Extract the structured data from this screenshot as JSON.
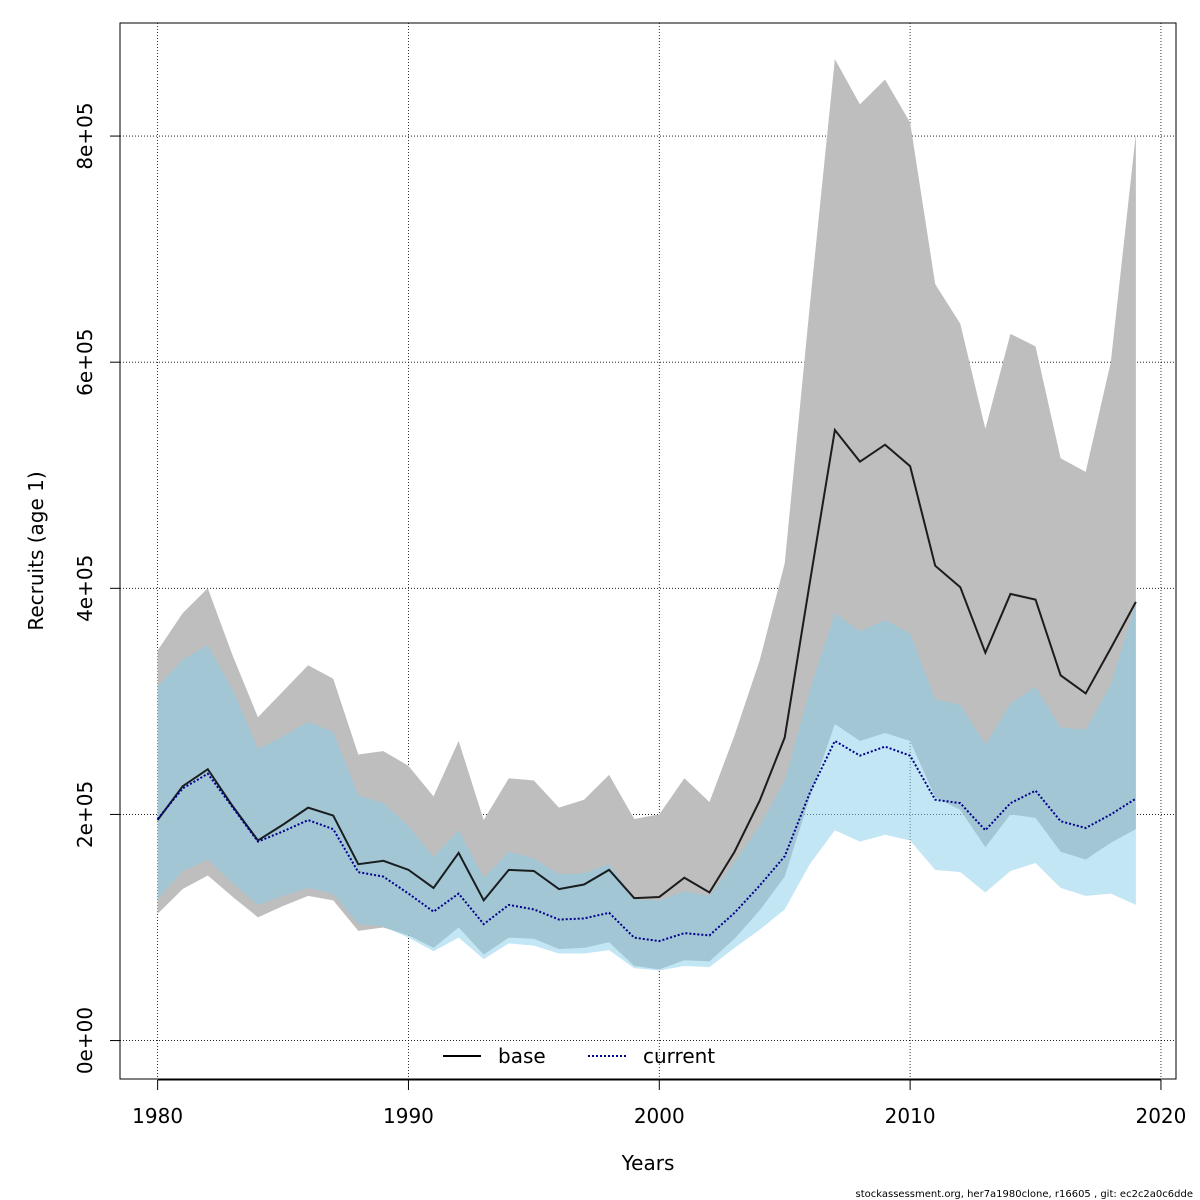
{
  "chart_data": {
    "type": "area",
    "title": "",
    "xlabel": "Years",
    "ylabel": "Recruits (age 1)",
    "xlim": [
      1978.5,
      2020.6
    ],
    "ylim": [
      -34000,
      900000
    ],
    "x_ticks": [
      1980,
      1990,
      2000,
      2010,
      2020
    ],
    "x_tick_labels": [
      "1980",
      "1990",
      "2000",
      "2010",
      "2020"
    ],
    "y_ticks": [
      0,
      200000,
      400000,
      600000,
      800000
    ],
    "y_tick_labels": [
      "0e+00",
      "2e+05",
      "4e+05",
      "6e+05",
      "8e+05"
    ],
    "grid": true,
    "legend_position": "bottom",
    "x": [
      1980,
      1981,
      1982,
      1983,
      1984,
      1985,
      1986,
      1987,
      1988,
      1989,
      1990,
      1991,
      1992,
      1993,
      1994,
      1995,
      1996,
      1997,
      1998,
      1999,
      2000,
      2001,
      2002,
      2003,
      2004,
      2005,
      2006,
      2007,
      2008,
      2009,
      2010,
      2011,
      2012,
      2013,
      2014,
      2015,
      2016,
      2017,
      2018,
      2019
    ],
    "series": [
      {
        "name": "base",
        "color": "#000000",
        "line_style": "solid",
        "band_color": "#bebebe",
        "values": [
          195000,
          225000,
          240000,
          207000,
          177000,
          191000,
          206000,
          199000,
          156000,
          159000,
          151000,
          135000,
          166000,
          124000,
          151000,
          150000,
          134000,
          138000,
          151000,
          126000,
          127000,
          144000,
          131000,
          167000,
          212000,
          268000,
          405000,
          540000,
          512000,
          527000,
          508000,
          420000,
          401000,
          343000,
          395000,
          390000,
          323000,
          307000,
          347000,
          388000
        ],
        "lower": [
          112000,
          134000,
          146000,
          127000,
          109000,
          119000,
          128000,
          124000,
          97000,
          100000,
          93000,
          82000,
          100000,
          76000,
          91000,
          90000,
          81000,
          82000,
          87000,
          66000,
          63000,
          71000,
          70000,
          90000,
          115000,
          145000,
          215000,
          280000,
          265000,
          272000,
          265000,
          215000,
          204000,
          171000,
          200000,
          197000,
          167000,
          160000,
          175000,
          187000
        ],
        "upper": [
          345000,
          378000,
          400000,
          340000,
          286000,
          309000,
          332000,
          320000,
          253000,
          256000,
          243000,
          216000,
          265000,
          195000,
          232000,
          230000,
          206000,
          213000,
          235000,
          196000,
          200000,
          232000,
          211000,
          270000,
          336000,
          422000,
          650000,
          868000,
          828000,
          850000,
          812000,
          669000,
          634000,
          541000,
          625000,
          614000,
          515000,
          503000,
          600000,
          802000
        ]
      },
      {
        "name": "current",
        "color": "#00008b",
        "line_style": "dotted",
        "band_color": "#87ceeb",
        "values": [
          196000,
          223000,
          236000,
          206000,
          176000,
          185000,
          195000,
          187000,
          149000,
          145000,
          130000,
          114000,
          130000,
          103000,
          120000,
          116000,
          107000,
          108000,
          113000,
          91000,
          88000,
          95000,
          93000,
          113000,
          137000,
          163000,
          219000,
          265000,
          252000,
          260000,
          252000,
          213000,
          210000,
          186000,
          210000,
          221000,
          194000,
          188000,
          200000,
          214000
        ],
        "lower": [
          125000,
          150000,
          160000,
          139000,
          120000,
          128000,
          135000,
          130000,
          103000,
          101000,
          91000,
          79000,
          91000,
          72000,
          86000,
          84000,
          77000,
          77000,
          80000,
          64000,
          62000,
          66000,
          65000,
          82000,
          98000,
          116000,
          156000,
          186000,
          176000,
          182000,
          177000,
          151000,
          149000,
          131000,
          150000,
          157000,
          135000,
          128000,
          130000,
          120000
        ],
        "upper": [
          313000,
          337000,
          350000,
          310000,
          258000,
          269000,
          282000,
          273000,
          217000,
          210000,
          190000,
          162000,
          186000,
          144000,
          167000,
          161000,
          147000,
          148000,
          156000,
          125000,
          124000,
          132000,
          128000,
          158000,
          190000,
          230000,
          310000,
          378000,
          362000,
          372000,
          360000,
          302000,
          297000,
          262000,
          298000,
          313000,
          277000,
          275000,
          315000,
          387000
        ]
      }
    ]
  },
  "footer_text": "stockassessment.org, her7a1980clone, r16605 , git: ec2c2a0c6dde"
}
